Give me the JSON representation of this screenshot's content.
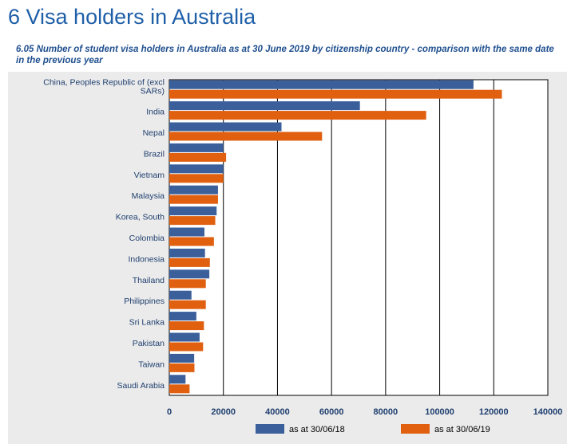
{
  "header": {
    "title": "6 Visa holders in Australia",
    "subtitle": "6.05 Number of student visa holders in Australia as at 30 June 2019 by citizenship country - comparison with the same date in the previous year"
  },
  "chart_data": {
    "type": "bar",
    "orientation": "horizontal",
    "categories": [
      "China, Peoples Republic of (excl SARs)",
      "India",
      "Nepal",
      "Brazil",
      "Vietnam",
      "Malaysia",
      "Korea, South",
      "Colombia",
      "Indonesia",
      "Thailand",
      "Philippines",
      "Sri Lanka",
      "Pakistan",
      "Taiwan",
      "Saudi Arabia"
    ],
    "category_label_lines": [
      [
        "China, Peoples Republic of (excl",
        "SARs)"
      ],
      [
        "India"
      ],
      [
        "Nepal"
      ],
      [
        "Brazil"
      ],
      [
        "Vietnam"
      ],
      [
        "Malaysia"
      ],
      [
        "Korea, South"
      ],
      [
        "Colombia"
      ],
      [
        "Indonesia"
      ],
      [
        "Thailand"
      ],
      [
        "Philippines"
      ],
      [
        "Sri Lanka"
      ],
      [
        "Pakistan"
      ],
      [
        "Taiwan"
      ],
      [
        "Saudi Arabia"
      ]
    ],
    "series": [
      {
        "name": "as at 30/06/18",
        "color": "#3a5f9a",
        "values": [
          112500,
          70500,
          41500,
          20000,
          20000,
          18000,
          17500,
          13000,
          13200,
          14800,
          8200,
          10000,
          11200,
          9200,
          6000
        ]
      },
      {
        "name": "as at 30/06/19",
        "color": "#e06010",
        "values": [
          123000,
          95000,
          56500,
          21000,
          20000,
          18000,
          17000,
          16500,
          15000,
          13500,
          13500,
          12800,
          12500,
          9300,
          7500
        ]
      }
    ],
    "xlim": [
      0,
      140000
    ],
    "xticks": [
      "0",
      "20000",
      "40000",
      "60000",
      "80000",
      "100000",
      "120000",
      "140000"
    ],
    "xtick_values": [
      0,
      20000,
      40000,
      60000,
      80000,
      100000,
      120000,
      140000
    ],
    "grid": true,
    "legend_position": "bottom",
    "axis_color": "#000000",
    "label_color": "#1f3f6f"
  }
}
